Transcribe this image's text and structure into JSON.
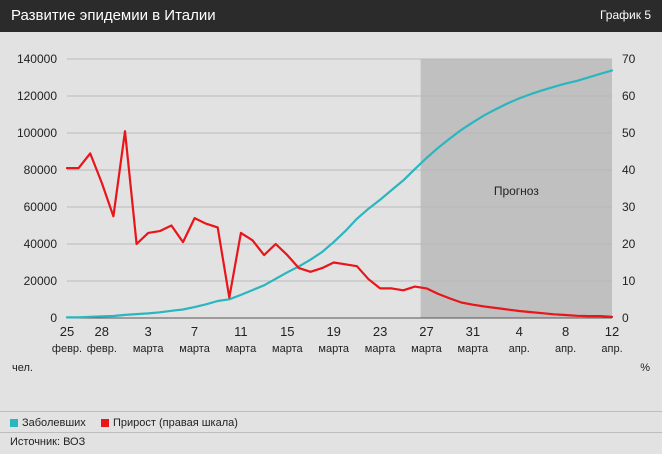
{
  "header": {
    "title": "Развитие эпидемии в Италии",
    "tag": "График 5"
  },
  "legend": {
    "cases_label": "Заболевших",
    "growth_label": "Прирост (правая шкала)"
  },
  "source": "Источник: ВОЗ",
  "colors": {
    "cases": "#2bb5bf",
    "growth": "#e8151a",
    "forecast_shade": "#c0c0c0",
    "grid": "#b9b9b9",
    "text": "#222222"
  },
  "chart_data": {
    "type": "line",
    "title": "Развитие эпидемии в Италии",
    "y_left_unit": "чел.",
    "y_right_unit": "%",
    "y_left": {
      "min": 0,
      "max": 140000,
      "ticks": [
        0,
        20000,
        40000,
        60000,
        80000,
        100000,
        120000,
        140000
      ]
    },
    "y_right": {
      "min": 0,
      "max": 70,
      "ticks": [
        0,
        10,
        20,
        30,
        40,
        50,
        60,
        70
      ]
    },
    "x": {
      "start_day": 0,
      "end_day": 47,
      "ticks": [
        {
          "day": 0,
          "num": "25",
          "month": "февр."
        },
        {
          "day": 3,
          "num": "28",
          "month": "февр."
        },
        {
          "day": 7,
          "num": "3",
          "month": "марта"
        },
        {
          "day": 11,
          "num": "7",
          "month": "марта"
        },
        {
          "day": 15,
          "num": "11",
          "month": "марта"
        },
        {
          "day": 19,
          "num": "15",
          "month": "марта"
        },
        {
          "day": 23,
          "num": "19",
          "month": "марта"
        },
        {
          "day": 27,
          "num": "23",
          "month": "марта"
        },
        {
          "day": 31,
          "num": "27",
          "month": "марта"
        },
        {
          "day": 35,
          "num": "31",
          "month": "марта"
        },
        {
          "day": 39,
          "num": "4",
          "month": "апр."
        },
        {
          "day": 43,
          "num": "8",
          "month": "апр."
        },
        {
          "day": 47,
          "num": "12",
          "month": "апр."
        }
      ]
    },
    "forecast": {
      "start_day": 30.5,
      "label": "Прогноз"
    },
    "series": [
      {
        "name": "Заболевших",
        "axis": "left",
        "days": [
          0,
          1,
          2,
          3,
          4,
          5,
          6,
          7,
          8,
          9,
          10,
          11,
          12,
          13,
          14,
          15,
          16,
          17,
          18,
          19,
          20,
          21,
          22,
          23,
          24,
          25,
          26,
          27,
          28,
          29,
          30,
          31,
          32,
          33,
          34,
          35,
          36,
          37,
          38,
          39,
          40,
          41,
          42,
          43,
          44,
          45,
          46,
          47
        ],
        "values": [
          300,
          400,
          650,
          900,
          1100,
          1700,
          2100,
          2500,
          3100,
          3900,
          4600,
          5900,
          7400,
          9200,
          10100,
          12500,
          15100,
          17700,
          21200,
          24700,
          27900,
          31500,
          35700,
          41000,
          47000,
          53600,
          59100,
          63900,
          69200,
          74400,
          80500,
          86500,
          92000,
          97000,
          101700,
          105800,
          109600,
          112900,
          116000,
          118700,
          121000,
          123100,
          125000,
          126700,
          128200,
          130100,
          132000,
          133800
        ]
      },
      {
        "name": "Прирост (правая шкала)",
        "axis": "right",
        "days": [
          0,
          1,
          2,
          3,
          4,
          5,
          6,
          7,
          8,
          9,
          10,
          11,
          12,
          13,
          14,
          15,
          16,
          17,
          18,
          19,
          20,
          21,
          22,
          23,
          24,
          25,
          26,
          27,
          28,
          29,
          30,
          31,
          32,
          33,
          34,
          35,
          36,
          37,
          38,
          39,
          40,
          41,
          42,
          43,
          44,
          45,
          46,
          47
        ],
        "values": [
          40.5,
          40.5,
          44.5,
          36.5,
          27.5,
          50.5,
          20,
          23,
          23.5,
          25,
          20.5,
          27,
          25.5,
          24.5,
          5.5,
          23,
          21,
          17,
          20,
          17,
          13.5,
          12.5,
          13.5,
          15,
          14.5,
          14,
          10.5,
          8,
          8,
          7.5,
          8.5,
          8,
          6.5,
          5.3,
          4.2,
          3.6,
          3.1,
          2.7,
          2.3,
          1.9,
          1.6,
          1.3,
          1.0,
          0.8,
          0.6,
          0.5,
          0.5,
          0.3
        ]
      }
    ]
  }
}
